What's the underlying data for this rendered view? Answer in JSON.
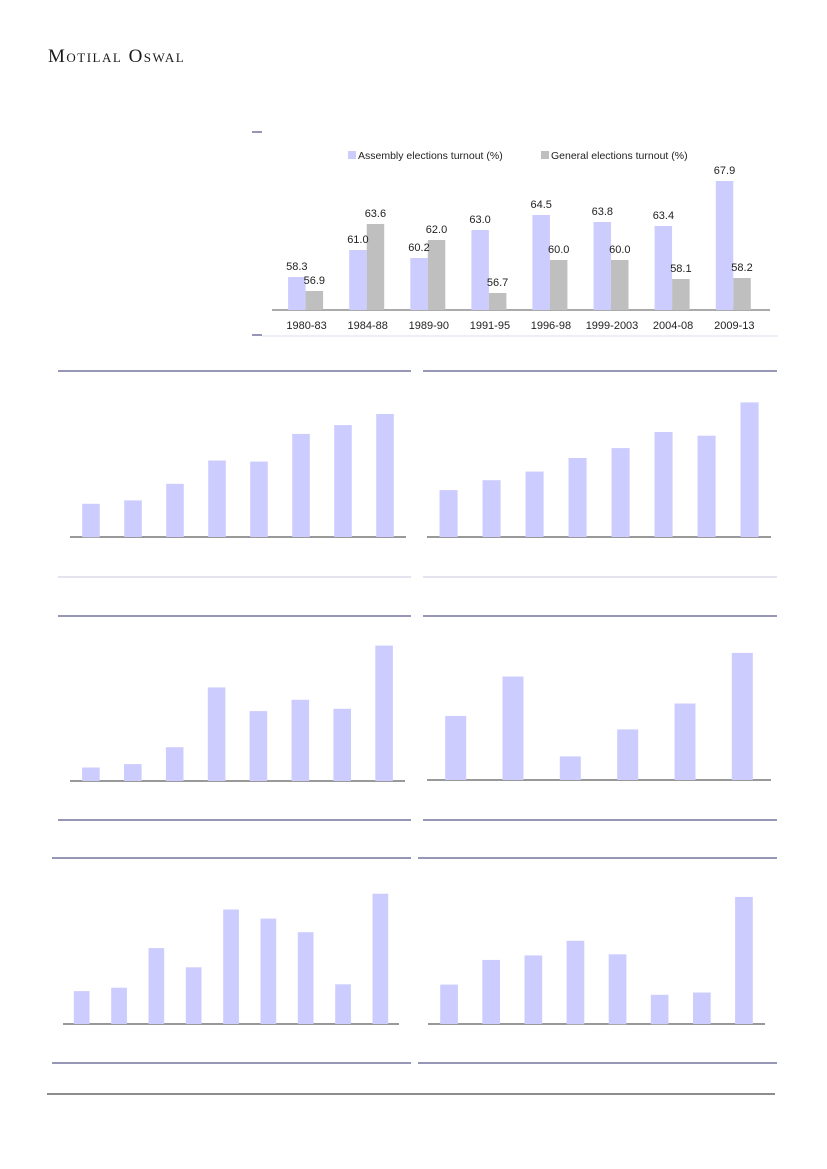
{
  "header": {
    "brand": "Motilal Oswal"
  },
  "colors": {
    "assembly": "#ccccff",
    "general": "#bfbfbf",
    "rule": "#2e2e6e"
  },
  "chart_data": [
    {
      "type": "bar",
      "categories": [
        "1980-83",
        "1984-88",
        "1989-90",
        "1991-95",
        "1996-98",
        "1999-2003",
        "2004-08",
        "2009-13"
      ],
      "series": [
        {
          "name": "Assembly elections turnout (%)",
          "values": [
            58.3,
            61.0,
            60.2,
            63.0,
            64.5,
            63.8,
            63.4,
            67.9
          ]
        },
        {
          "name": "General elections turnout (%)",
          "values": [
            56.9,
            63.6,
            62.0,
            56.7,
            60.0,
            60.0,
            58.1,
            58.2
          ]
        }
      ],
      "legend": "top",
      "ylim": [
        55,
        69
      ]
    },
    {
      "type": "bar",
      "values": [
        3.0,
        3.3,
        4.8,
        6.9,
        6.8,
        9.3,
        10.1,
        11.1
      ],
      "ylim": [
        0,
        12
      ]
    },
    {
      "type": "bar",
      "values": [
        3.8,
        4.6,
        5.3,
        6.4,
        7.2,
        8.5,
        8.2,
        10.9
      ],
      "ylim": [
        0,
        11.5
      ]
    },
    {
      "type": "bar",
      "values": [
        1.2,
        1.5,
        3.0,
        8.3,
        6.2,
        7.2,
        6.4,
        12.0
      ],
      "ylim": [
        0,
        12.5
      ]
    },
    {
      "type": "bar",
      "values": [
        5.7,
        9.2,
        2.1,
        4.5,
        6.8,
        11.3
      ],
      "ylim": [
        0,
        12
      ]
    },
    {
      "type": "bar",
      "values": [
        2.9,
        3.2,
        6.7,
        5.0,
        10.1,
        9.3,
        8.1,
        3.5,
        11.5
      ],
      "ylim": [
        0,
        12
      ]
    },
    {
      "type": "bar",
      "values": [
        3.5,
        5.7,
        6.1,
        7.4,
        6.2,
        2.6,
        2.8,
        11.3
      ],
      "ylim": [
        0,
        12
      ]
    }
  ]
}
